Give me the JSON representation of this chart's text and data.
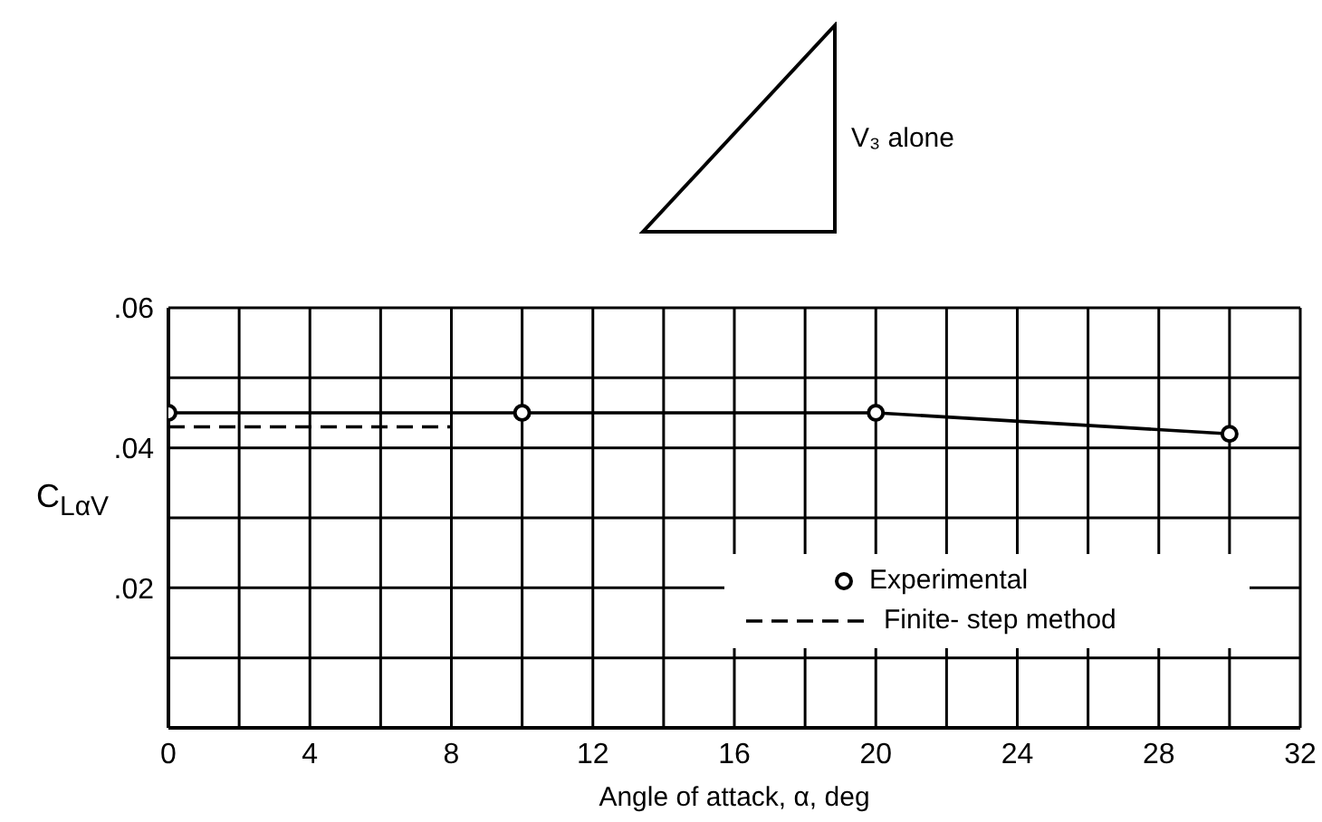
{
  "chart_data": {
    "type": "line",
    "xlabel": "Angle of attack, α, deg",
    "ylabel": "C$_{LαV}$",
    "annotations": [
      "V₃ alone"
    ],
    "xlim": [
      0,
      32
    ],
    "xticks": [
      0,
      {
        "value": 2,
        "label": null
      },
      4,
      {
        "value": 6,
        "label": null
      },
      8,
      {
        "value": 10,
        "label": null
      },
      12,
      {
        "value": 14,
        "label": null
      },
      16,
      {
        "value": 18,
        "label": null
      },
      20,
      {
        "value": 22,
        "label": null
      },
      24,
      {
        "value": 26,
        "label": null
      },
      28,
      {
        "value": 30,
        "label": null
      },
      32
    ],
    "ylim": [
      0,
      0.06
    ],
    "yticks": [
      {
        "value": 0,
        "label": null
      },
      {
        "value": 0.01,
        "label": null
      },
      {
        "value": 0.02,
        "label": ".02"
      },
      {
        "value": 0.03,
        "label": null
      },
      {
        "value": 0.04,
        "label": ".04"
      },
      {
        "value": 0.05,
        "label": null
      },
      {
        "value": 0.06,
        "label": ".06"
      }
    ],
    "grid": true,
    "legend": "bottom right",
    "series": [
      {
        "name": "Experimental",
        "color": "#000000",
        "marker": "circle",
        "line_style": "solid",
        "x": [
          0,
          10,
          20,
          30
        ],
        "values": [
          0.045,
          0.045,
          0.045,
          0.042
        ]
      },
      {
        "name": "Finite- step method",
        "color": "#000000",
        "marker": "none",
        "line_style": "dashed",
        "x": [
          0,
          8
        ],
        "values": [
          0.043,
          0.043
        ]
      }
    ]
  }
}
